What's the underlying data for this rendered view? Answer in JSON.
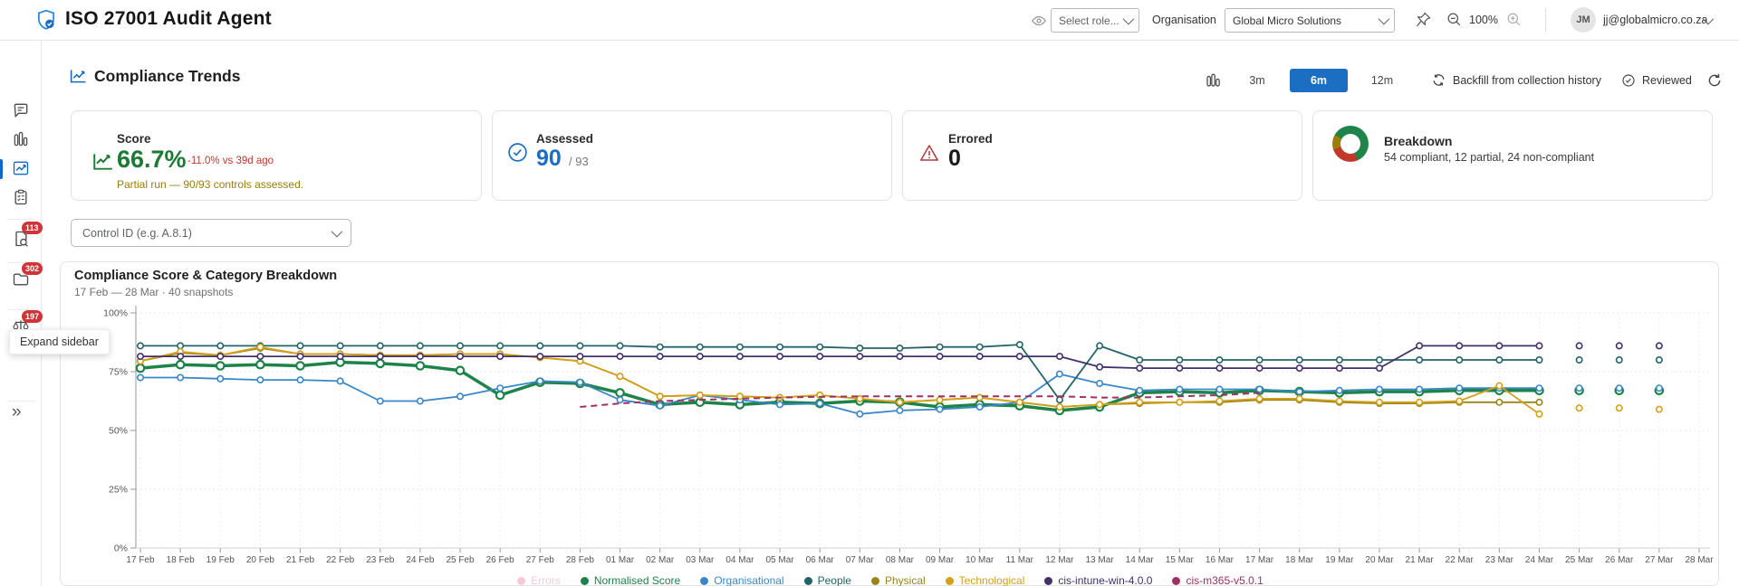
{
  "header": {
    "app_title": "ISO 27001 Audit Agent",
    "role_select_placeholder": "Select role...",
    "organisation_label": "Organisation",
    "organisation_value": "Global Micro Solutions",
    "zoom_level": "100%",
    "avatar_initials": "JM",
    "user_email": "jj@globalmicro.co.za"
  },
  "sidebar": {
    "badges": {
      "search": "113",
      "folder": "302",
      "scale": "197"
    },
    "tooltip": "Expand sidebar",
    "expand_glyph": "»"
  },
  "page": {
    "title": "Compliance Trends"
  },
  "toolbar": {
    "range_3m": "3m",
    "range_6m": "6m",
    "range_12m": "12m",
    "backfill_label": "Backfill from collection history",
    "reviewed_label": "Reviewed"
  },
  "cards": {
    "score": {
      "label": "Score",
      "value": "66.7%",
      "delta": "-11.0% vs 39d ago",
      "note": "Partial run — 90/93 controls assessed.",
      "value_color": "#1d7a34",
      "delta_color": "#c0392b",
      "note_color": "#9a7d0a"
    },
    "assessed": {
      "label": "Assessed",
      "value": "90",
      "total": "/ 93",
      "value_color": "#1b6ec2"
    },
    "errored": {
      "label": "Errored",
      "value": "0"
    },
    "breakdown": {
      "label": "Breakdown",
      "summary": "54 compliant, 12 partial, 24 non-compliant",
      "compliant": 54,
      "partial": 12,
      "non_compliant": 24,
      "colors": {
        "compliant": "#1e8449",
        "partial": "#9a7d0a",
        "non_compliant": "#c0392b"
      }
    }
  },
  "filter": {
    "control_id_placeholder": "Control ID (e.g. A.8.1)"
  },
  "chart_data": {
    "type": "line",
    "title": "Compliance Score & Category Breakdown",
    "subtitle": "17 Feb — 28 Mar · 40 snapshots",
    "ylabel": "",
    "xlabel": "",
    "ylim": [
      0,
      100
    ],
    "y_ticks": [
      "0%",
      "25%",
      "50%",
      "75%",
      "100%"
    ],
    "grid": true,
    "legend_position": "bottom",
    "x": [
      "17 Feb",
      "18 Feb",
      "19 Feb",
      "20 Feb",
      "21 Feb",
      "22 Feb",
      "23 Feb",
      "24 Feb",
      "25 Feb",
      "26 Feb",
      "27 Feb",
      "28 Feb",
      "01 Mar",
      "02 Mar",
      "03 Mar",
      "04 Mar",
      "05 Mar",
      "06 Mar",
      "07 Mar",
      "08 Mar",
      "09 Mar",
      "10 Mar",
      "11 Mar",
      "12 Mar",
      "13 Mar",
      "14 Mar",
      "15 Mar",
      "16 Mar",
      "17 Mar",
      "18 Mar",
      "19 Mar",
      "20 Mar",
      "21 Mar",
      "22 Mar",
      "23 Mar",
      "24 Mar",
      "25 Mar",
      "26 Mar",
      "27 Mar",
      "28 Mar"
    ],
    "series": [
      {
        "name": "Errors",
        "color": "#ef9db3",
        "muted": true,
        "width": 2,
        "marker_r": 0,
        "values": [],
        "isolated": []
      },
      {
        "name": "Normalised Score",
        "color": "#1d8348",
        "width": 3.5,
        "marker_r": 4.2,
        "values": [
          76.5,
          78,
          77.5,
          78,
          77.5,
          79,
          78.5,
          77.5,
          75.5,
          65,
          70.5,
          70,
          66,
          61,
          62,
          61,
          62,
          61.5,
          62.5,
          62,
          60,
          61,
          60.5,
          58.5,
          60,
          66,
          66.5,
          66,
          67,
          66.5,
          66,
          66.5,
          66.5,
          67,
          67,
          67,
          null,
          null,
          null,
          null
        ],
        "isolated": [
          {
            "i": 36,
            "v": 67
          },
          {
            "i": 37,
            "v": 67
          },
          {
            "i": 38,
            "v": 67
          }
        ]
      },
      {
        "name": "Organisational",
        "color": "#3a87c8",
        "width": 1.8,
        "marker_r": 3.2,
        "values": [
          72.5,
          72.5,
          72,
          71.5,
          71.5,
          71,
          62.5,
          62.5,
          64.5,
          68,
          71,
          70.5,
          63,
          60.5,
          65,
          63,
          61,
          61.5,
          57,
          58.5,
          59,
          60,
          62,
          74,
          70,
          67,
          67.5,
          67.5,
          67.5,
          66.5,
          67,
          67.5,
          67.5,
          68,
          68,
          68,
          null,
          null,
          null,
          null
        ],
        "isolated": [
          {
            "i": 36,
            "v": 68
          },
          {
            "i": 37,
            "v": 68
          },
          {
            "i": 38,
            "v": 68
          }
        ]
      },
      {
        "name": "People",
        "color": "#24636a",
        "width": 1.8,
        "marker_r": 3.2,
        "values": [
          86,
          86,
          86,
          86,
          86,
          86,
          86,
          86,
          86,
          86,
          86,
          86,
          86,
          85.5,
          85.5,
          85.5,
          85.5,
          85.5,
          85,
          85,
          85.5,
          85.5,
          86.5,
          63,
          86,
          80,
          80,
          80,
          80,
          80,
          80,
          80,
          80,
          80,
          80,
          80,
          null,
          null,
          null,
          null
        ],
        "isolated": [
          {
            "i": 36,
            "v": 80
          },
          {
            "i": 37,
            "v": 80
          },
          {
            "i": 38,
            "v": 80
          }
        ]
      },
      {
        "name": "Physical",
        "color": "#9a8419",
        "width": 1.8,
        "marker_r": 3.2,
        "values": [
          79.5,
          83,
          82,
          85,
          82.5,
          82.5,
          82,
          82,
          82.5,
          82.5,
          81,
          79.5,
          73,
          64.5,
          65,
          64.5,
          64,
          65,
          63.5,
          62,
          63,
          64,
          62,
          60,
          61,
          61.5,
          62,
          62,
          63,
          63,
          62,
          61.5,
          61.5,
          62,
          62,
          62,
          null,
          null,
          null,
          null
        ],
        "isolated": []
      },
      {
        "name": "Technological",
        "color": "#d4a017",
        "width": 1.8,
        "marker_r": 3.2,
        "values": [
          79.5,
          83.5,
          82,
          85.5,
          82.5,
          82.5,
          82,
          82,
          82.5,
          82.5,
          81,
          79.5,
          73,
          64.5,
          65,
          64.5,
          64,
          65,
          63.5,
          62,
          63,
          64,
          62,
          60,
          61,
          62,
          62,
          62.5,
          63.5,
          63.5,
          62.5,
          62,
          62,
          62.5,
          69,
          57,
          null,
          null,
          null,
          null
        ],
        "isolated": [
          {
            "i": 36,
            "v": 59.5
          },
          {
            "i": 37,
            "v": 59.5
          },
          {
            "i": 38,
            "v": 59
          }
        ]
      },
      {
        "name": "cis-intune-win-4.0.0",
        "color": "#43306b",
        "width": 1.8,
        "marker_r": 3.2,
        "values": [
          81.5,
          81.5,
          81.5,
          81.5,
          81.5,
          81.5,
          81.5,
          81.5,
          81.5,
          81.5,
          81.5,
          81.5,
          81.5,
          81.5,
          81.5,
          81.5,
          81.5,
          81.5,
          81.5,
          81.5,
          81.5,
          81.5,
          81.5,
          81.5,
          77,
          76.5,
          76.5,
          76.5,
          76.5,
          76.5,
          76.5,
          76.5,
          86,
          86,
          86,
          86,
          null,
          null,
          null,
          null
        ],
        "isolated": [
          {
            "i": 36,
            "v": 86
          },
          {
            "i": 37,
            "v": 86
          },
          {
            "i": 38,
            "v": 86
          }
        ]
      },
      {
        "name": "cis-m365-v5.0.1",
        "color": "#9b3263",
        "width": 2,
        "marker_r": 0,
        "dash": "7 5",
        "values": [
          null,
          null,
          null,
          null,
          null,
          null,
          null,
          null,
          null,
          null,
          null,
          60,
          61.5,
          62.5,
          63,
          63.5,
          64,
          64.3,
          64.5,
          64.5,
          64.5,
          64.5,
          64.5,
          64.5,
          64,
          64,
          64.5,
          65,
          66,
          null,
          null,
          null,
          null,
          null,
          null,
          null,
          null,
          null,
          null,
          null
        ],
        "isolated": []
      }
    ]
  }
}
